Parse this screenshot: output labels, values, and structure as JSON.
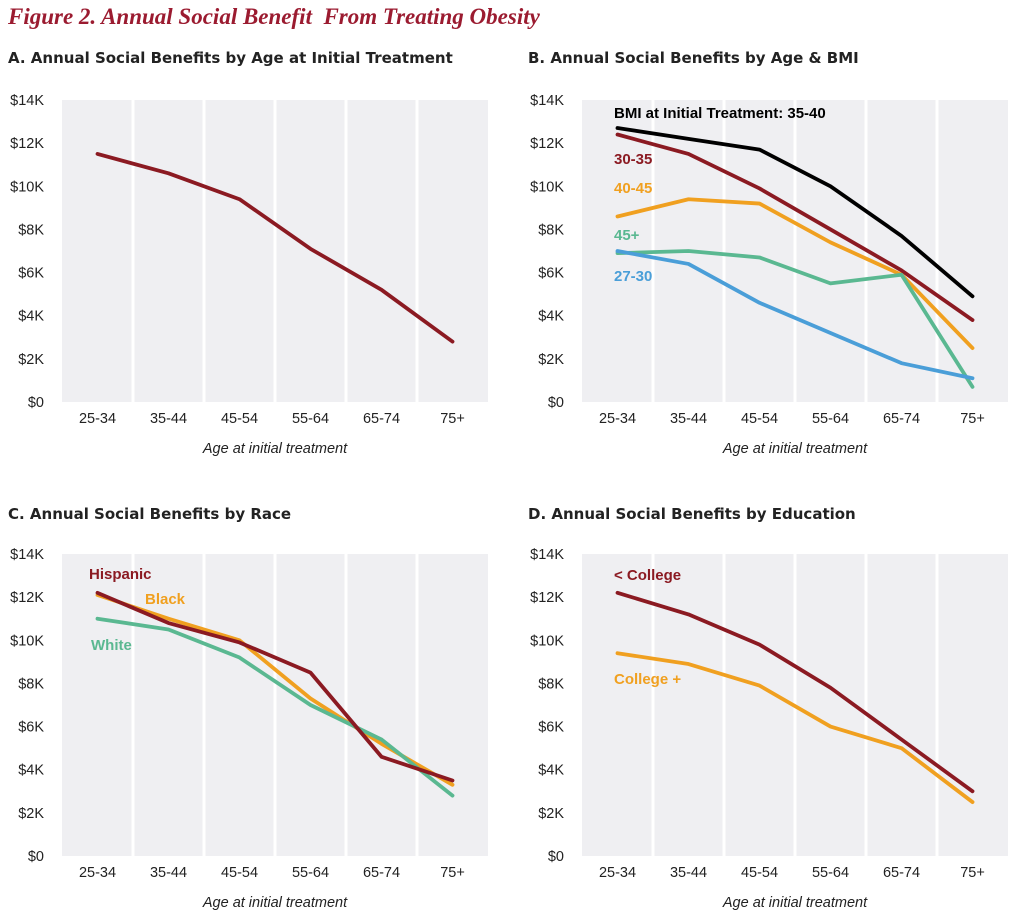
{
  "figure_title": "Figure 2. Annual Social Benefit  From Treating Obesity",
  "colors": {
    "plot_bg": "#efeff2",
    "grid": "#ffffff",
    "dark_red": "#8b1a22",
    "black": "#000000",
    "orange": "#f0a020",
    "teal": "#5ab891",
    "blue": "#4a9ed8"
  },
  "chart_data": [
    {
      "id": "A",
      "type": "line",
      "title": "A. Annual Social Benefits by Age at Initial Treatment",
      "xlabel": "Age at initial treatment",
      "ylabel": "",
      "categories": [
        "25-34",
        "35-44",
        "45-54",
        "55-64",
        "65-74",
        "75+"
      ],
      "yticks": [
        "$0",
        "$2K",
        "$4K",
        "$6K",
        "$8K",
        "$10K",
        "$12K",
        "$14K"
      ],
      "ylim": [
        0,
        14000
      ],
      "grid": true,
      "series": [
        {
          "name": "",
          "color": "#8b1a22",
          "values": [
            11500,
            10600,
            9400,
            7100,
            5200,
            2800
          ]
        }
      ]
    },
    {
      "id": "B",
      "type": "line",
      "title": "B. Annual Social Benefits by Age & BMI",
      "xlabel": "Age at initial treatment",
      "ylabel": "",
      "categories": [
        "25-34",
        "35-44",
        "45-54",
        "55-64",
        "65-74",
        "75+"
      ],
      "yticks": [
        "$0",
        "$2K",
        "$4K",
        "$6K",
        "$8K",
        "$10K",
        "$12K",
        "$14K"
      ],
      "ylim": [
        0,
        14000
      ],
      "grid": true,
      "series": [
        {
          "name": "BMI at Initial Treatment: 35-40",
          "color": "#000000",
          "values": [
            12700,
            12200,
            11700,
            10000,
            7700,
            4900
          ]
        },
        {
          "name": "30-35",
          "color": "#8b1a22",
          "values": [
            12400,
            11500,
            9900,
            8000,
            6100,
            3800
          ]
        },
        {
          "name": "40-45",
          "color": "#f0a020",
          "values": [
            8600,
            9400,
            9200,
            7400,
            5900,
            2500
          ]
        },
        {
          "name": "45+",
          "color": "#5ab891",
          "values": [
            6900,
            7000,
            6700,
            5500,
            5900,
            700
          ]
        },
        {
          "name": "27-30",
          "color": "#4a9ed8",
          "values": [
            7000,
            6400,
            4600,
            3200,
            1800,
            1100
          ]
        }
      ]
    },
    {
      "id": "C",
      "type": "line",
      "title": "C. Annual Social Benefits by Race",
      "xlabel": "Age at initial treatment",
      "ylabel": "",
      "categories": [
        "25-34",
        "35-44",
        "45-54",
        "55-64",
        "65-74",
        "75+"
      ],
      "yticks": [
        "$0",
        "$2K",
        "$4K",
        "$6K",
        "$8K",
        "$10K",
        "$12K",
        "$14K"
      ],
      "ylim": [
        0,
        14000
      ],
      "grid": true,
      "series": [
        {
          "name": "Black",
          "color": "#f0a020",
          "values": [
            12100,
            11000,
            10000,
            7300,
            5200,
            3300
          ]
        },
        {
          "name": "White",
          "color": "#5ab891",
          "values": [
            11000,
            10500,
            9200,
            7000,
            5400,
            2800
          ]
        },
        {
          "name": "Hispanic",
          "color": "#8b1a22",
          "values": [
            12200,
            10800,
            9900,
            8500,
            4600,
            3500
          ]
        }
      ]
    },
    {
      "id": "D",
      "type": "line",
      "title": "D. Annual Social Benefits by Education",
      "xlabel": "Age at initial treatment",
      "ylabel": "",
      "categories": [
        "25-34",
        "35-44",
        "45-54",
        "55-64",
        "65-74",
        "75+"
      ],
      "yticks": [
        "$0",
        "$2K",
        "$4K",
        "$6K",
        "$8K",
        "$10K",
        "$12K",
        "$14K"
      ],
      "ylim": [
        0,
        14000
      ],
      "grid": true,
      "series": [
        {
          "name": "< College",
          "color": "#8b1a22",
          "values": [
            12200,
            11200,
            9800,
            7800,
            5400,
            3000
          ]
        },
        {
          "name": "College +",
          "color": "#f0a020",
          "values": [
            9400,
            8900,
            7900,
            6000,
            5000,
            2500
          ]
        }
      ]
    }
  ]
}
